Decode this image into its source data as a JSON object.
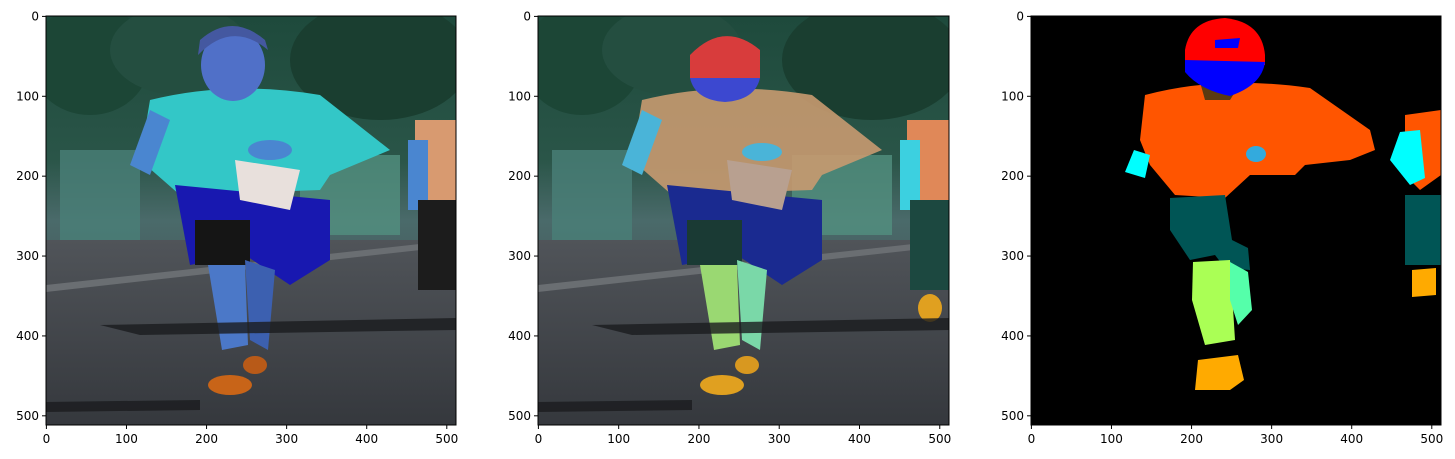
{
  "panels": [
    {
      "name": "original-image",
      "description_label": "",
      "xticks": [
        "0",
        "100",
        "200",
        "300",
        "400",
        "500"
      ],
      "yticks": [
        "0",
        "100",
        "200",
        "300",
        "400",
        "500"
      ]
    },
    {
      "name": "overlay-image",
      "description_label": "",
      "xticks": [
        "0",
        "100",
        "200",
        "300",
        "400",
        "500"
      ],
      "yticks": [
        "0",
        "100",
        "200",
        "300",
        "400",
        "500"
      ]
    },
    {
      "name": "segmentation-mask",
      "description_label": "",
      "xticks": [
        "0",
        "100",
        "200",
        "300",
        "400",
        "500"
      ],
      "yticks": [
        "0",
        "100",
        "200",
        "300",
        "400",
        "500"
      ]
    }
  ],
  "axis": {
    "xlim": [
      0,
      512
    ],
    "ylim": [
      512,
      0
    ],
    "tick_values": [
      0,
      100,
      200,
      300,
      400,
      500
    ]
  },
  "colors": {
    "hair": "#ff0000",
    "face": "#0000ff",
    "neck": "#5a3a10",
    "upper_clothes": "#ff5500",
    "left_arm": "#00ffff",
    "right_arm": "#33aadd",
    "pants": "#005555",
    "left_leg": "#aaff55",
    "right_leg": "#55ffaa",
    "shoes": "#ffaa00",
    "background": "#000000"
  }
}
